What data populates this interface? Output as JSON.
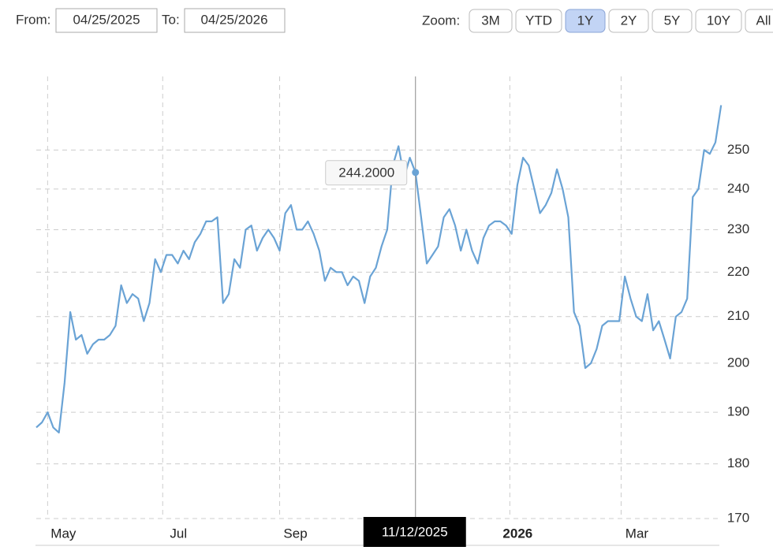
{
  "controls": {
    "from_label": "From:",
    "from": "04/25/2025",
    "to_label": "To:",
    "to": "04/25/2026",
    "zoom_label": "Zoom:",
    "zoom_options": [
      "3M",
      "YTD",
      "1Y",
      "2Y",
      "5Y",
      "10Y",
      "All"
    ],
    "zoom_selected": "1Y"
  },
  "chart_data": {
    "type": "line",
    "log_scale": true,
    "grid": true,
    "color": "#6aa3d5",
    "xlim": [
      "2025-04-25",
      "2026-04-25"
    ],
    "xticks": [
      {
        "value": "2025-05-01",
        "label": "May"
      },
      {
        "value": "2025-07-01",
        "label": "Jul"
      },
      {
        "value": "2025-09-01",
        "label": "Sep"
      },
      {
        "value": "2026-01-01",
        "label": "2026"
      },
      {
        "value": "2026-03-01",
        "label": "Mar"
      }
    ],
    "ylim": [
      170,
      270
    ],
    "yticks": [
      170,
      180,
      190,
      200,
      210,
      220,
      230,
      240,
      250
    ],
    "x": [
      "2025-04-25",
      "2025-04-28",
      "2025-05-01",
      "2025-05-04",
      "2025-05-07",
      "2025-05-10",
      "2025-05-13",
      "2025-05-16",
      "2025-05-19",
      "2025-05-22",
      "2025-05-25",
      "2025-05-28",
      "2025-05-31",
      "2025-06-03",
      "2025-06-06",
      "2025-06-09",
      "2025-06-12",
      "2025-06-15",
      "2025-06-18",
      "2025-06-21",
      "2025-06-24",
      "2025-06-27",
      "2025-06-30",
      "2025-07-03",
      "2025-07-06",
      "2025-07-09",
      "2025-07-12",
      "2025-07-15",
      "2025-07-18",
      "2025-07-21",
      "2025-07-24",
      "2025-07-27",
      "2025-07-30",
      "2025-08-02",
      "2025-08-05",
      "2025-08-08",
      "2025-08-11",
      "2025-08-14",
      "2025-08-17",
      "2025-08-20",
      "2025-08-23",
      "2025-08-26",
      "2025-08-29",
      "2025-09-01",
      "2025-09-04",
      "2025-09-07",
      "2025-09-10",
      "2025-09-13",
      "2025-09-16",
      "2025-09-19",
      "2025-09-22",
      "2025-09-25",
      "2025-09-28",
      "2025-10-01",
      "2025-10-04",
      "2025-10-07",
      "2025-10-10",
      "2025-10-13",
      "2025-10-16",
      "2025-10-19",
      "2025-10-22",
      "2025-10-25",
      "2025-10-28",
      "2025-10-31",
      "2025-11-03",
      "2025-11-06",
      "2025-11-09",
      "2025-11-12",
      "2025-11-15",
      "2025-11-18",
      "2025-11-21",
      "2025-11-24",
      "2025-11-27",
      "2025-11-30",
      "2025-12-03",
      "2025-12-06",
      "2025-12-09",
      "2025-12-12",
      "2025-12-15",
      "2025-12-18",
      "2025-12-21",
      "2025-12-24",
      "2025-12-27",
      "2025-12-30",
      "2026-01-02",
      "2026-01-05",
      "2026-01-08",
      "2026-01-11",
      "2026-01-14",
      "2026-01-17",
      "2026-01-20",
      "2026-01-23",
      "2026-01-26",
      "2026-01-29",
      "2026-02-01",
      "2026-02-04",
      "2026-02-07",
      "2026-02-10",
      "2026-02-13",
      "2026-02-16",
      "2026-02-19",
      "2026-02-22",
      "2026-02-25",
      "2026-02-28",
      "2026-03-03",
      "2026-03-06",
      "2026-03-09",
      "2026-03-12",
      "2026-03-15",
      "2026-03-18",
      "2026-03-21",
      "2026-03-24",
      "2026-03-27",
      "2026-03-30",
      "2026-04-02",
      "2026-04-05",
      "2026-04-08",
      "2026-04-11",
      "2026-04-14",
      "2026-04-17",
      "2026-04-20",
      "2026-04-23"
    ],
    "values": [
      187,
      188,
      190,
      187,
      186,
      196,
      211,
      205,
      206,
      202,
      204,
      205,
      205,
      206,
      208,
      217,
      213,
      215,
      214,
      209,
      213,
      223,
      220,
      224,
      224,
      222,
      225,
      223,
      227,
      229,
      232,
      232,
      233,
      213,
      215,
      223,
      221,
      230,
      231,
      225,
      228,
      230,
      228,
      225,
      234,
      236,
      230,
      230,
      232,
      229,
      225,
      218,
      221,
      220,
      220,
      217,
      219,
      218,
      213,
      219,
      221,
      226,
      230,
      246,
      251,
      243,
      248,
      244.2,
      233,
      222,
      224,
      226,
      233,
      235,
      231,
      225,
      230,
      225,
      222,
      228,
      231,
      232,
      232,
      231,
      229,
      241,
      248,
      246,
      240,
      234,
      236,
      239,
      245,
      240,
      233,
      211,
      208,
      199,
      200,
      203,
      208,
      209,
      209,
      209,
      219,
      214,
      210,
      209,
      215,
      207,
      209,
      205,
      201,
      210,
      211,
      214,
      238,
      240,
      250,
      249,
      252,
      262
    ],
    "tooltip": {
      "x": "11/12/2025",
      "value": 244.2,
      "label": "244.2000"
    }
  }
}
